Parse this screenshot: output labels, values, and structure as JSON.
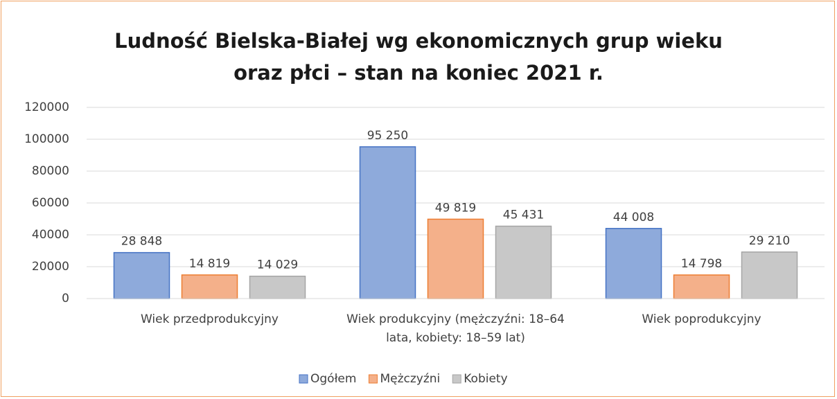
{
  "chart_data": {
    "type": "bar",
    "title": "Ludność Bielska-Białej wg ekonomicznych grup wieku oraz płci – stan na koniec 2021 r.",
    "categories": [
      "Wiek przedprodukcyjny",
      "Wiek produkcyjny (mężczyźni: 18–64 lata, kobiety: 18–59 lat)",
      "Wiek poprodukcyjny"
    ],
    "series": [
      {
        "name": "Ogółem",
        "color": "#8eaadb",
        "values": [
          28848,
          95250,
          44008
        ],
        "value_labels": [
          "28 848",
          "95 250",
          "44 008"
        ]
      },
      {
        "name": "Mężczyźni",
        "color": "#f4b08a",
        "values": [
          14819,
          49819,
          14798
        ],
        "value_labels": [
          "14 819",
          "49 819",
          "14 798"
        ]
      },
      {
        "name": "Kobiety",
        "color": "#c8c8c8",
        "values": [
          14029,
          45431,
          29210
        ],
        "value_labels": [
          "14 029",
          "45 431",
          "29 210"
        ]
      }
    ],
    "ylim": [
      0,
      120000
    ],
    "yticks": [
      0,
      20000,
      40000,
      60000,
      80000,
      100000,
      120000
    ],
    "grid": true,
    "legend": "bottom"
  }
}
